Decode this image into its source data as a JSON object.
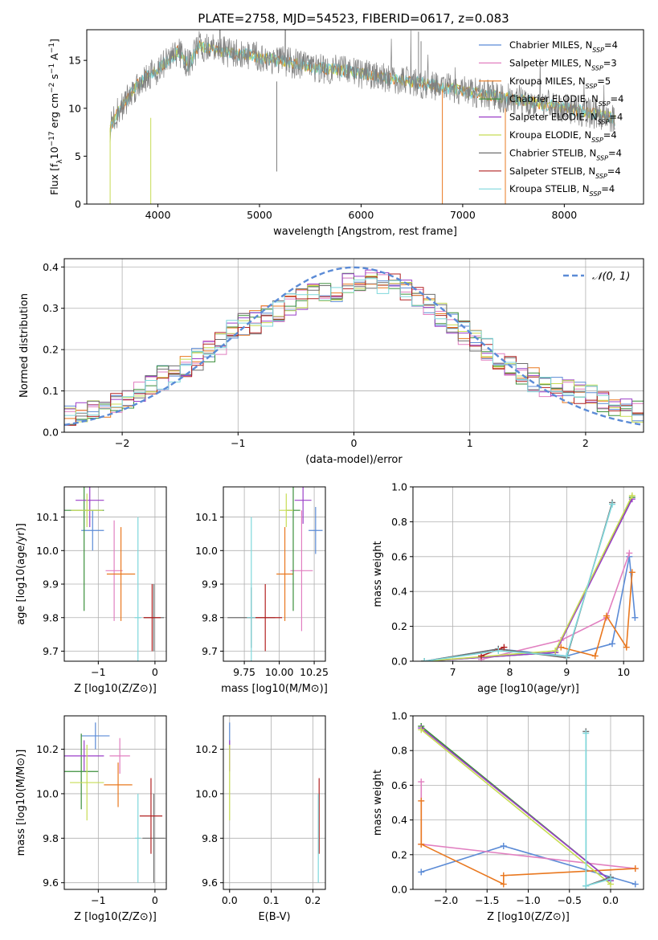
{
  "figure_title": "PLATE=2758, MJD=54523, FIBERID=0617, z=0.083",
  "colors": {
    "chabrier_miles": "#5b8bd6",
    "salpeter_miles": "#e17fc0",
    "kroupa_miles": "#e9781f",
    "chabrier_elodie": "#3b8f3b",
    "salpeter_elodie": "#9b3fc8",
    "kroupa_elodie": "#c7dc54",
    "chabrier_stelib": "#6f6f6f",
    "salpeter_stelib": "#b22222",
    "kroupa_stelib": "#7fd8dc",
    "normal_curve": "#5b8bd6"
  },
  "chart_data": [
    {
      "id": "spectrum",
      "type": "line",
      "xlabel": "wavelength [Angstrom, rest frame]",
      "ylabel": "Flux [f",
      "ylabel_parts": [
        "Flux [f",
        "λ",
        "10",
        "−17",
        " erg cm",
        "−2",
        " s",
        "−1",
        " A",
        "−1",
        "]"
      ],
      "xlim": [
        3300,
        8780
      ],
      "ylim": [
        0,
        18.2
      ],
      "xticks": [
        4000,
        5000,
        6000,
        7000,
        8000
      ],
      "yticks": [
        0,
        5,
        10,
        15
      ],
      "grid": false,
      "legend_position": "upper right",
      "legend": [
        {
          "name": "Chabrier MILES",
          "n": "4",
          "color": "#5b8bd6"
        },
        {
          "name": "Salpeter MILES",
          "n": "3",
          "color": "#e17fc0"
        },
        {
          "name": "Kroupa MILES",
          "n": "5",
          "color": "#e9781f"
        },
        {
          "name": "Chabrier ELODIE",
          "n": "4",
          "color": "#3b8f3b"
        },
        {
          "name": "Salpeter ELODIE",
          "n": "4",
          "color": "#9b3fc8"
        },
        {
          "name": "Kroupa ELODIE",
          "n": "4",
          "color": "#c7dc54"
        },
        {
          "name": "Chabrier STELIB",
          "n": "4",
          "color": "#6f6f6f"
        },
        {
          "name": "Salpeter STELIB",
          "n": "4",
          "color": "#b22222"
        },
        {
          "name": "Kroupa STELIB",
          "n": "4",
          "color": "#7fd8dc"
        }
      ],
      "data_shape": {
        "x": [
          3530,
          3600,
          3700,
          3800,
          3900,
          4000,
          4100,
          4200,
          4300,
          4400,
          4600,
          4800,
          5000,
          5200,
          5500,
          5800,
          6000,
          6300,
          6600,
          6800,
          7000,
          7200,
          7400,
          7600,
          7800,
          8000,
          8200,
          8400,
          8500
        ],
        "y": [
          8.0,
          9.5,
          11.0,
          12.5,
          13.5,
          14.0,
          15.0,
          16.0,
          14.5,
          16.5,
          16.0,
          15.7,
          15.3,
          15.0,
          14.3,
          14.0,
          13.6,
          13.1,
          12.6,
          12.2,
          11.8,
          11.5,
          11.1,
          10.8,
          10.4,
          10.0,
          9.6,
          9.3,
          8.8
        ]
      }
    },
    {
      "id": "residuals",
      "type": "line",
      "xlabel": "(data-model)/error",
      "ylabel": "Normed distribution",
      "xlim": [
        -2.5,
        2.5
      ],
      "ylim": [
        0,
        0.42
      ],
      "xticks": [
        -2,
        -1,
        0,
        1,
        2
      ],
      "yticks": [
        0.0,
        0.1,
        0.2,
        0.3,
        0.4
      ],
      "grid": true,
      "legend_position": "upper right",
      "legend": [
        {
          "name": "𝒩(0, 1)",
          "style": "dashed"
        }
      ],
      "histogram_envelope": {
        "x": [
          -2.5,
          -2.2,
          -2.0,
          -1.8,
          -1.6,
          -1.4,
          -1.2,
          -1.0,
          -0.8,
          -0.6,
          -0.4,
          -0.2,
          0.0,
          0.2,
          0.4,
          0.6,
          0.8,
          1.0,
          1.2,
          1.4,
          1.6,
          1.8,
          2.0,
          2.2,
          2.5
        ],
        "y": [
          0.04,
          0.06,
          0.08,
          0.11,
          0.14,
          0.17,
          0.2,
          0.26,
          0.27,
          0.3,
          0.33,
          0.34,
          0.36,
          0.37,
          0.35,
          0.32,
          0.27,
          0.23,
          0.19,
          0.15,
          0.12,
          0.1,
          0.09,
          0.07,
          0.05
        ]
      }
    },
    {
      "id": "age_vs_Z",
      "type": "scatter",
      "xlabel": "Z [log10(Z/Z⊙)]",
      "ylabel": "age [log10(age/yr)]",
      "xlim": [
        -1.6,
        0.2
      ],
      "ylim": [
        9.67,
        10.19
      ],
      "xticks": [
        -1,
        0
      ],
      "yticks": [
        9.7,
        9.8,
        9.9,
        10.0,
        10.1
      ],
      "grid": true,
      "points": [
        {
          "model": "chabrier_miles",
          "x": -1.1,
          "y": 10.06,
          "xerr": 0.2,
          "yerr": 0.06
        },
        {
          "model": "salpeter_miles",
          "x": -0.72,
          "y": 9.94,
          "xerr": 0.15,
          "yerr": 0.15
        },
        {
          "model": "kroupa_miles",
          "x": -0.6,
          "y": 9.93,
          "xerr": 0.25,
          "yerr": 0.14
        },
        {
          "model": "chabrier_elodie",
          "x": -1.25,
          "y": 10.12,
          "xerr": 0.35,
          "yerr": 0.3
        },
        {
          "model": "salpeter_elodie",
          "x": -1.15,
          "y": 10.15,
          "xerr": 0.25,
          "yerr": 0.08
        },
        {
          "model": "kroupa_elodie",
          "x": -1.2,
          "y": 10.12,
          "xerr": 0.28,
          "yerr": 0.05
        },
        {
          "model": "chabrier_stelib",
          "x": -0.02,
          "y": 9.8,
          "xerr": 0.18,
          "yerr": 0.1
        },
        {
          "model": "salpeter_stelib",
          "x": -0.05,
          "y": 9.8,
          "xerr": 0.15,
          "yerr": 0.1
        },
        {
          "model": "kroupa_stelib",
          "x": -0.3,
          "y": 9.8,
          "xerr": 0.06,
          "yerr": 0.3
        }
      ]
    },
    {
      "id": "age_vs_mass",
      "type": "scatter",
      "xlabel": "mass [log10(M/M⊙)]",
      "ylabel": "",
      "xlim": [
        9.6,
        10.33
      ],
      "ylim": [
        9.67,
        10.19
      ],
      "xticks": [
        9.75,
        10.0,
        10.25
      ],
      "yticks": [
        9.7,
        9.8,
        9.9,
        10.0,
        10.1
      ],
      "grid": true,
      "points": [
        {
          "model": "chabrier_miles",
          "x": 10.26,
          "y": 10.06,
          "xerr": 0.05,
          "yerr": 0.07
        },
        {
          "model": "salpeter_miles",
          "x": 10.16,
          "y": 9.94,
          "xerr": 0.08,
          "yerr": 0.18
        },
        {
          "model": "kroupa_miles",
          "x": 10.04,
          "y": 9.93,
          "xerr": 0.06,
          "yerr": 0.14
        },
        {
          "model": "chabrier_elodie",
          "x": 10.1,
          "y": 10.12,
          "xerr": 0.05,
          "yerr": 0.3
        },
        {
          "model": "salpeter_elodie",
          "x": 10.17,
          "y": 10.15,
          "xerr": 0.06,
          "yerr": 0.07
        },
        {
          "model": "kroupa_elodie",
          "x": 10.05,
          "y": 10.12,
          "xerr": 0.05,
          "yerr": 0.05
        },
        {
          "model": "chabrier_stelib",
          "x": 9.8,
          "y": 9.8,
          "xerr": 0.17,
          "yerr": 0.09
        },
        {
          "model": "salpeter_stelib",
          "x": 9.9,
          "y": 9.8,
          "xerr": 0.12,
          "yerr": 0.1
        },
        {
          "model": "kroupa_stelib",
          "x": 9.8,
          "y": 9.8,
          "xerr": 0.03,
          "yerr": 0.3
        }
      ]
    },
    {
      "id": "weight_vs_age",
      "type": "line",
      "xlabel": "age [log10(age/yr)]",
      "ylabel": "mass weight",
      "xlim": [
        6.3,
        10.35
      ],
      "ylim": [
        0,
        1.0
      ],
      "xticks": [
        7,
        8,
        9,
        10
      ],
      "yticks": [
        0.0,
        0.2,
        0.4,
        0.6,
        0.8,
        1.0
      ],
      "grid": true,
      "series": [
        {
          "model": "chabrier_miles",
          "x": [
            6.5,
            7.8,
            9.0,
            9.8,
            10.1,
            10.2
          ],
          "y": [
            0.0,
            0.07,
            0.03,
            0.1,
            0.6,
            0.25
          ]
        },
        {
          "model": "salpeter_miles",
          "x": [
            7.5,
            8.9,
            9.7,
            10.1
          ],
          "y": [
            0.01,
            0.12,
            0.25,
            0.62
          ]
        },
        {
          "model": "kroupa_miles",
          "x": [
            8.9,
            9.5,
            9.7,
            10.05,
            10.15
          ],
          "y": [
            0.08,
            0.03,
            0.26,
            0.08,
            0.51
          ]
        },
        {
          "model": "chabrier_elodie",
          "x": [
            6.5,
            8.8,
            10.15
          ],
          "y": [
            0.0,
            0.05,
            0.94
          ]
        },
        {
          "model": "salpeter_elodie",
          "x": [
            6.5,
            8.8,
            10.15
          ],
          "y": [
            0.0,
            0.05,
            0.93
          ]
        },
        {
          "model": "kroupa_elodie",
          "x": [
            6.5,
            8.8,
            10.15
          ],
          "y": [
            0.0,
            0.06,
            0.95
          ]
        },
        {
          "model": "chabrier_stelib",
          "x": [
            6.5,
            7.8,
            9.0,
            9.8
          ],
          "y": [
            0.0,
            0.07,
            0.02,
            0.91
          ]
        },
        {
          "model": "salpeter_stelib",
          "x": [
            7.5,
            7.9
          ],
          "y": [
            0.03,
            0.08
          ]
        },
        {
          "model": "kroupa_stelib",
          "x": [
            6.5,
            7.8,
            9.0,
            9.8
          ],
          "y": [
            0.0,
            0.06,
            0.03,
            0.9
          ]
        }
      ]
    },
    {
      "id": "mass_vs_Z",
      "type": "scatter",
      "xlabel": "Z [log10(Z/Z⊙)]",
      "ylabel": "mass [log10(M/M⊙)]",
      "xlim": [
        -1.6,
        0.2
      ],
      "ylim": [
        9.57,
        10.35
      ],
      "xticks": [
        -1,
        0
      ],
      "yticks": [
        9.6,
        9.8,
        10.0,
        10.2
      ],
      "grid": true,
      "points": [
        {
          "model": "chabrier_miles",
          "x": -1.05,
          "y": 10.26,
          "xerr": 0.25,
          "yerr": 0.06
        },
        {
          "model": "salpeter_miles",
          "x": -0.62,
          "y": 10.17,
          "xerr": 0.18,
          "yerr": 0.08
        },
        {
          "model": "kroupa_miles",
          "x": -0.65,
          "y": 10.04,
          "xerr": 0.25,
          "yerr": 0.1
        },
        {
          "model": "chabrier_elodie",
          "x": -1.3,
          "y": 10.1,
          "xerr": 0.3,
          "yerr": 0.17
        },
        {
          "model": "salpeter_elodie",
          "x": -1.25,
          "y": 10.17,
          "xerr": 0.35,
          "yerr": 0.07
        },
        {
          "model": "kroupa_elodie",
          "x": -1.2,
          "y": 10.05,
          "xerr": 0.3,
          "yerr": 0.17
        },
        {
          "model": "chabrier_stelib",
          "x": -0.02,
          "y": 9.8,
          "xerr": 0.2,
          "yerr": 0.2
        },
        {
          "model": "salpeter_stelib",
          "x": -0.07,
          "y": 9.9,
          "xerr": 0.2,
          "yerr": 0.17
        },
        {
          "model": "kroupa_stelib",
          "x": -0.3,
          "y": 9.8,
          "xerr": 0.05,
          "yerr": 0.2
        }
      ]
    },
    {
      "id": "mass_vs_ebv",
      "type": "scatter",
      "xlabel": "E(B-V)",
      "ylabel": "",
      "xlim": [
        -0.015,
        0.23
      ],
      "ylim": [
        9.57,
        10.35
      ],
      "xticks": [
        0.0,
        0.1,
        0.2
      ],
      "yticks": [
        9.6,
        9.8,
        10.0,
        10.2
      ],
      "grid": true,
      "points": [
        {
          "model": "chabrier_miles",
          "x": 0.0,
          "y": 10.26,
          "yerr": 0.06
        },
        {
          "model": "salpeter_elodie",
          "x": 0.0,
          "y": 10.17,
          "yerr": 0.07
        },
        {
          "model": "kroupa_elodie",
          "x": 0.0,
          "y": 10.05,
          "yerr": 0.17
        },
        {
          "model": "salpeter_stelib",
          "x": 0.215,
          "y": 9.9,
          "yerr": 0.17
        },
        {
          "model": "kroupa_stelib",
          "x": 0.213,
          "y": 9.8,
          "yerr": 0.2
        }
      ]
    },
    {
      "id": "weight_vs_Z",
      "type": "line",
      "xlabel": "Z [log10(Z/Z⊙)]",
      "ylabel": "mass weight",
      "xlim": [
        -2.4,
        0.4
      ],
      "ylim": [
        0,
        1.0
      ],
      "xticks": [
        -2.0,
        -1.5,
        -1.0,
        -0.5,
        0.0
      ],
      "yticks": [
        0.0,
        0.2,
        0.4,
        0.6,
        0.8,
        1.0
      ],
      "grid": true,
      "series": [
        {
          "model": "chabrier_miles",
          "x": [
            -2.3,
            -1.3,
            0.3
          ],
          "y": [
            0.1,
            0.25,
            0.03
          ]
        },
        {
          "model": "salpeter_miles",
          "x": [
            -2.3,
            -2.3,
            0.3
          ],
          "y": [
            0.62,
            0.26,
            0.12
          ]
        },
        {
          "model": "kroupa_miles",
          "x": [
            -2.3,
            -2.3,
            -1.3,
            -1.3,
            0.3
          ],
          "y": [
            0.51,
            0.26,
            0.03,
            0.08,
            0.12
          ]
        },
        {
          "model": "chabrier_elodie",
          "x": [
            -2.3,
            0.0
          ],
          "y": [
            0.94,
            0.05
          ]
        },
        {
          "model": "salpeter_elodie",
          "x": [
            -2.3,
            0.0
          ],
          "y": [
            0.93,
            0.05
          ]
        },
        {
          "model": "kroupa_elodie",
          "x": [
            -2.3,
            0.0
          ],
          "y": [
            0.92,
            0.03
          ]
        },
        {
          "model": "chabrier_stelib",
          "x": [
            -0.3,
            -0.3,
            0.0
          ],
          "y": [
            0.91,
            0.02,
            0.07
          ]
        },
        {
          "model": "kroupa_stelib",
          "x": [
            -0.3,
            -0.3,
            0.0
          ],
          "y": [
            0.9,
            0.02,
            0.06
          ]
        }
      ]
    }
  ]
}
